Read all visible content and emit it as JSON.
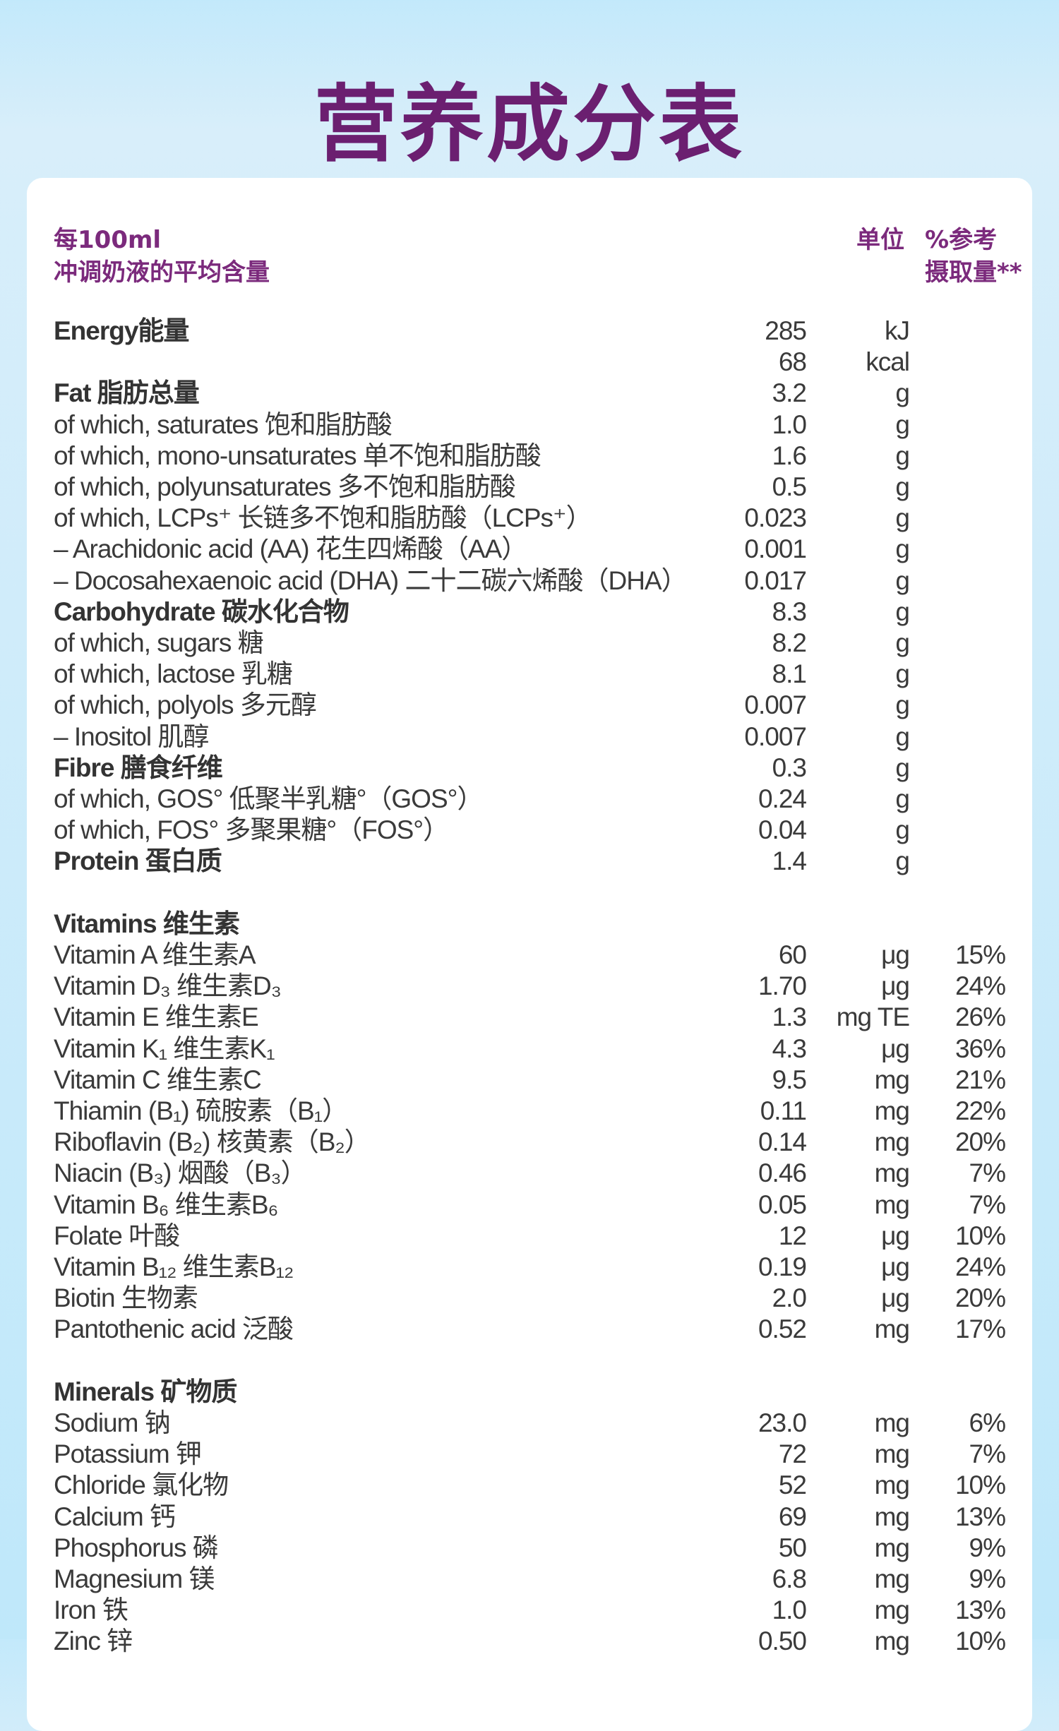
{
  "title": "营养成分表",
  "header": {
    "per": "每100ml",
    "per_desc": "冲调奶液的平均含量",
    "unit": "单位",
    "pct_line1": "%参考",
    "pct_line2": "摄取量**"
  },
  "rows": [
    {
      "label": "Energy能量",
      "value": "285",
      "unit": "kJ",
      "pct": "",
      "bold": true
    },
    {
      "label": "",
      "value": "68",
      "unit": "kcal",
      "pct": ""
    },
    {
      "label": "Fat 脂肪总量",
      "value": "3.2",
      "unit": "g",
      "pct": "",
      "bold": true
    },
    {
      "label": "of which, saturates 饱和脂肪酸",
      "value": "1.0",
      "unit": "g",
      "pct": ""
    },
    {
      "label": "of which, mono-unsaturates 单不饱和脂肪酸",
      "value": "1.6",
      "unit": "g",
      "pct": ""
    },
    {
      "label": "of which, polyunsaturates 多不饱和脂肪酸",
      "value": "0.5",
      "unit": "g",
      "pct": ""
    },
    {
      "label": "of which, LCPs⁺ 长链多不饱和脂肪酸（LCPs⁺）",
      "value": "0.023",
      "unit": "g",
      "pct": ""
    },
    {
      "label": "– Arachidonic acid (AA) 花生四烯酸（AA）",
      "value": "0.001",
      "unit": "g",
      "pct": ""
    },
    {
      "label": "– Docosahexaenoic acid (DHA) 二十二碳六烯酸（DHA）",
      "value": "0.017",
      "unit": "g",
      "pct": ""
    },
    {
      "label": "Carbohydrate 碳水化合物",
      "value": "8.3",
      "unit": "g",
      "pct": "",
      "bold": true
    },
    {
      "label": "of which, sugars 糖",
      "value": "8.2",
      "unit": "g",
      "pct": ""
    },
    {
      "label": "of which, lactose 乳糖",
      "value": "8.1",
      "unit": "g",
      "pct": ""
    },
    {
      "label": "of which, polyols 多元醇",
      "value": "0.007",
      "unit": "g",
      "pct": ""
    },
    {
      "label": "– Inositol 肌醇",
      "value": "0.007",
      "unit": "g",
      "pct": ""
    },
    {
      "label": "Fibre 膳食纤维",
      "value": "0.3",
      "unit": "g",
      "pct": "",
      "bold": true
    },
    {
      "label": "of which, GOS° 低聚半乳糖°（GOS°）",
      "value": "0.24",
      "unit": "g",
      "pct": ""
    },
    {
      "label": "of which, FOS° 多聚果糖°（FOS°）",
      "value": "0.04",
      "unit": "g",
      "pct": ""
    },
    {
      "label": "Protein 蛋白质",
      "value": "1.4",
      "unit": "g",
      "pct": "",
      "bold": true
    },
    null,
    {
      "label": "Vitamins 维生素",
      "value": "",
      "unit": "",
      "pct": "",
      "bold": true
    },
    {
      "label": "Vitamin A 维生素A",
      "value": "60",
      "unit": "μg",
      "pct": "15%"
    },
    {
      "label": "Vitamin D₃ 维生素D₃",
      "value": "1.70",
      "unit": "μg",
      "pct": "24%"
    },
    {
      "label": "Vitamin E 维生素E",
      "value": "1.3",
      "unit": "mg TE",
      "pct": "26%"
    },
    {
      "label": "Vitamin K₁ 维生素K₁",
      "value": "4.3",
      "unit": "μg",
      "pct": "36%"
    },
    {
      "label": "Vitamin C 维生素C",
      "value": "9.5",
      "unit": "mg",
      "pct": "21%"
    },
    {
      "label": "Thiamin (B₁) 硫胺素（B₁）",
      "value": "0.11",
      "unit": "mg",
      "pct": "22%"
    },
    {
      "label": "Riboflavin (B₂) 核黄素（B₂）",
      "value": "0.14",
      "unit": "mg",
      "pct": "20%"
    },
    {
      "label": "Niacin (B₃) 烟酸（B₃）",
      "value": "0.46",
      "unit": "mg",
      "pct": "7%"
    },
    {
      "label": "Vitamin B₆ 维生素B₆",
      "value": "0.05",
      "unit": "mg",
      "pct": "7%"
    },
    {
      "label": "Folate 叶酸",
      "value": "12",
      "unit": "μg",
      "pct": "10%"
    },
    {
      "label": "Vitamin B₁₂ 维生素B₁₂",
      "value": "0.19",
      "unit": "μg",
      "pct": "24%"
    },
    {
      "label": "Biotin 生物素",
      "value": "2.0",
      "unit": "μg",
      "pct": "20%"
    },
    {
      "label": "Pantothenic acid 泛酸",
      "value": "0.52",
      "unit": "mg",
      "pct": "17%"
    },
    null,
    {
      "label": "Minerals 矿物质",
      "value": "",
      "unit": "",
      "pct": "",
      "bold": true
    },
    {
      "label": "Sodium 钠",
      "value": "23.0",
      "unit": "mg",
      "pct": "6%"
    },
    {
      "label": "Potassium 钾",
      "value": "72",
      "unit": "mg",
      "pct": "7%"
    },
    {
      "label": "Chloride 氯化物",
      "value": "52",
      "unit": "mg",
      "pct": "10%"
    },
    {
      "label": "Calcium 钙",
      "value": "69",
      "unit": "mg",
      "pct": "13%"
    },
    {
      "label": "Phosphorus 磷",
      "value": "50",
      "unit": "mg",
      "pct": "9%"
    },
    {
      "label": "Magnesium 镁",
      "value": "6.8",
      "unit": "mg",
      "pct": "9%"
    },
    {
      "label": "Iron 铁",
      "value": "1.0",
      "unit": "mg",
      "pct": "13%"
    },
    {
      "label": "Zinc 锌",
      "value": "0.50",
      "unit": "mg",
      "pct": "10%"
    }
  ]
}
